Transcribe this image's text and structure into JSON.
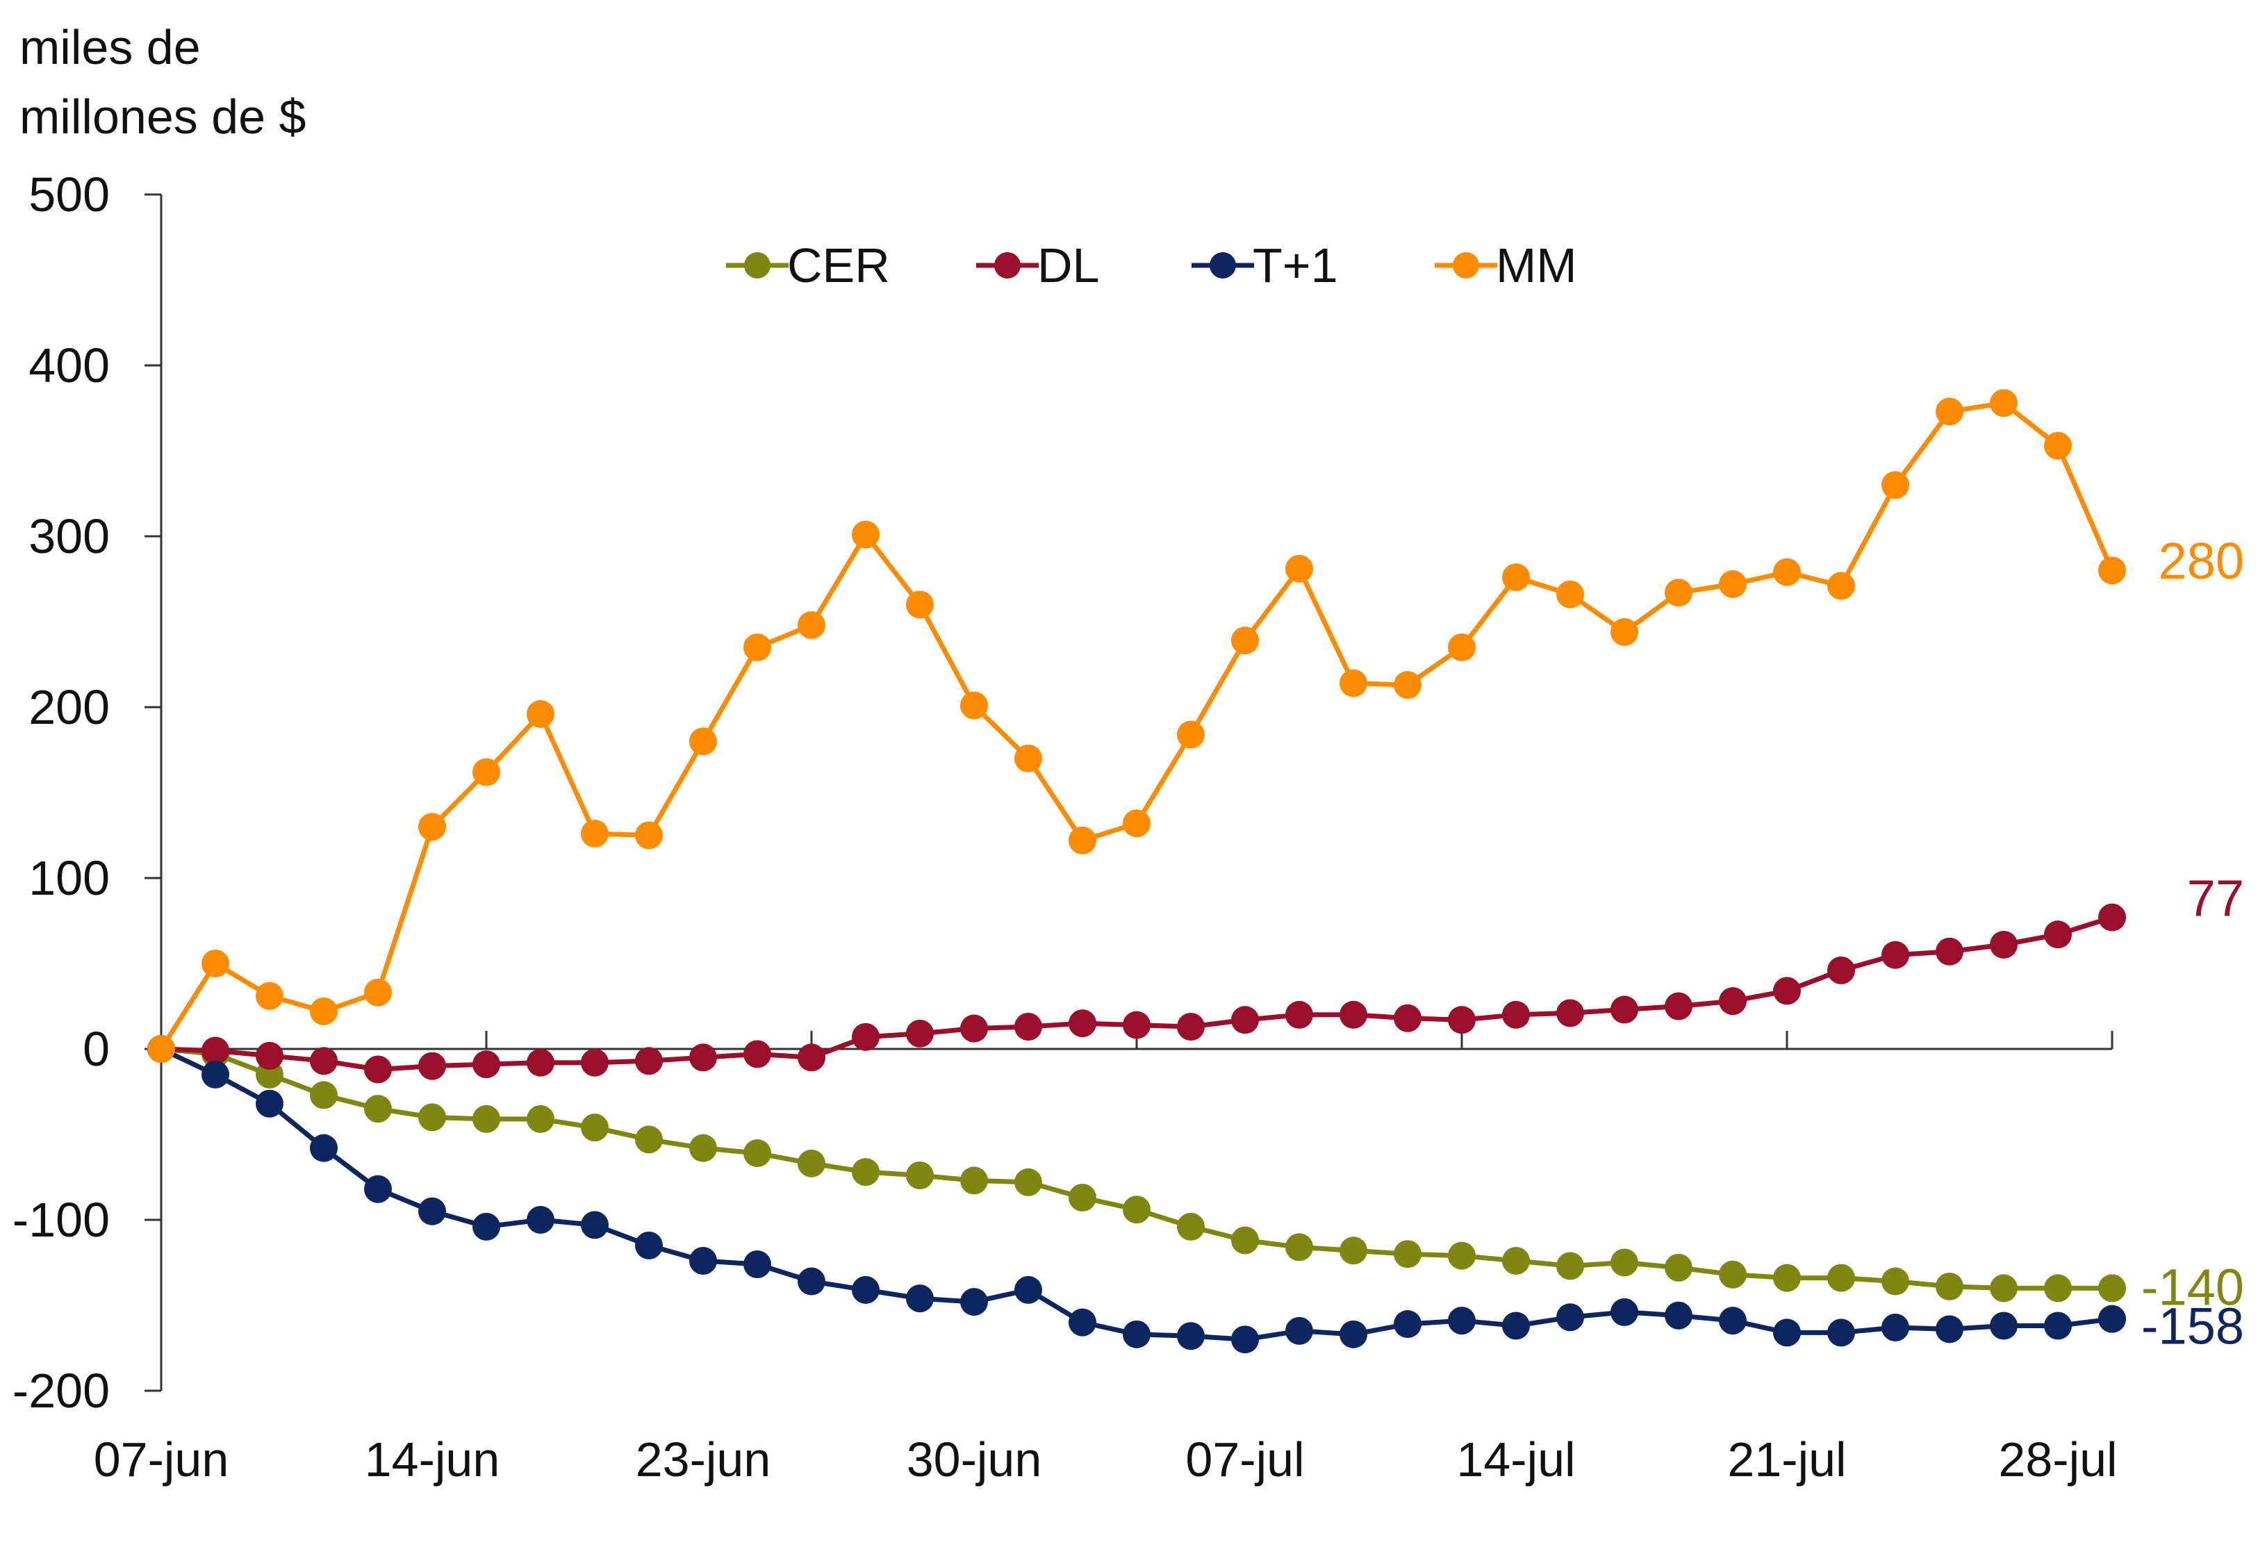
{
  "chart_data": {
    "type": "line",
    "ylabel_lines": [
      "miles de",
      "millones de $"
    ],
    "ylim": [
      -200,
      500
    ],
    "yticks": [
      -200,
      -100,
      0,
      100,
      200,
      300,
      400,
      500
    ],
    "xtick_labels": [
      "07-jun",
      "14-jun",
      "23-jun",
      "30-jun",
      "07-jul",
      "14-jul",
      "21-jul",
      "28-jul"
    ],
    "xtick_label_index": [
      0,
      5,
      10,
      15,
      20,
      25,
      30,
      35
    ],
    "xtick_mark_index": [
      0,
      6,
      12,
      18,
      24,
      30,
      36
    ],
    "n_points": 37,
    "legend_position": "top-center",
    "grid": false,
    "series": [
      {
        "name": "CER",
        "color": "#7f8712",
        "end_label": "-140",
        "values": [
          0,
          -3,
          -15,
          -27,
          -35,
          -40,
          -41,
          -41,
          -46,
          -53,
          -58,
          -61,
          -67,
          -72,
          -74,
          -77,
          -78,
          -87,
          -94,
          -104,
          -112,
          -116,
          -118,
          -120,
          -121,
          -124,
          -127,
          -125,
          -128,
          -132,
          -134,
          -134,
          -136,
          -139,
          -140,
          -140,
          -140
        ]
      },
      {
        "name": "DL",
        "color": "#9a0f2a",
        "end_label": "77",
        "values": [
          0,
          -1,
          -4,
          -7,
          -12,
          -10,
          -9,
          -8,
          -8,
          -7,
          -5,
          -3,
          -5,
          7,
          9,
          12,
          13,
          15,
          14,
          13,
          17,
          20,
          20,
          18,
          17,
          20,
          21,
          23,
          25,
          28,
          34,
          46,
          55,
          57,
          61,
          67,
          77
        ]
      },
      {
        "name": "T+1",
        "color": "#0d2660",
        "end_label": "-158",
        "values": [
          0,
          -15,
          -32,
          -58,
          -82,
          -95,
          -104,
          -100,
          -103,
          -115,
          -124,
          -126,
          -136,
          -141,
          -146,
          -148,
          -141,
          -160,
          -167,
          -168,
          -170,
          -165,
          -167,
          -161,
          -159,
          -162,
          -157,
          -154,
          -156,
          -159,
          -166,
          -166,
          -163,
          -164,
          -162,
          -162,
          -158
        ]
      },
      {
        "name": "MM",
        "color": "#ff8c00",
        "end_label": "280",
        "values": [
          0,
          50,
          31,
          22,
          33,
          130,
          162,
          196,
          126,
          125,
          180,
          235,
          248,
          301,
          260,
          201,
          170,
          122,
          132,
          184,
          239,
          281,
          214,
          213,
          235,
          276,
          266,
          244,
          267,
          272,
          279,
          271,
          330,
          373,
          378,
          353,
          280
        ]
      }
    ]
  }
}
